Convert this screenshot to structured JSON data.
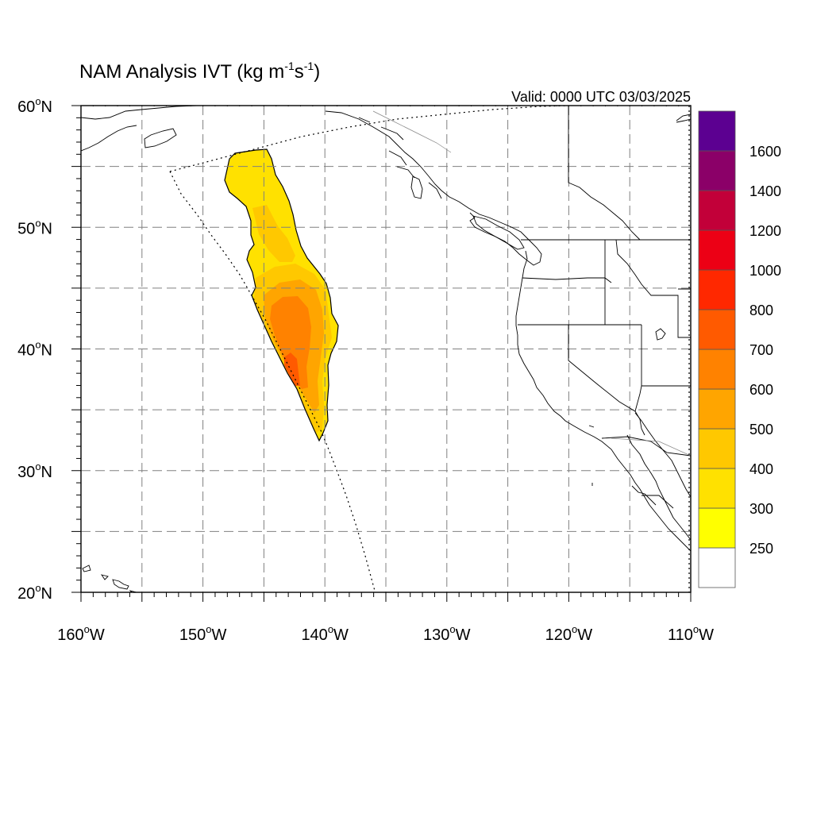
{
  "title": {
    "main": "NAM Analysis IVT (kg m",
    "exp1": "-1",
    "mid": "s",
    "exp2": "-1",
    "close": ")"
  },
  "valid_label": "Valid: 0000 UTC 03/03/2025",
  "map": {
    "projection": "lat-lon",
    "lon_range": [
      -160,
      -110
    ],
    "lat_range": [
      20,
      60
    ],
    "grid": true,
    "lon_ticks": [
      {
        "value": -160,
        "label": "160",
        "suffix": "W"
      },
      {
        "value": -150,
        "label": "150",
        "suffix": "W"
      },
      {
        "value": -140,
        "label": "140",
        "suffix": "W"
      },
      {
        "value": -130,
        "label": "130",
        "suffix": "W"
      },
      {
        "value": -120,
        "label": "120",
        "suffix": "W"
      },
      {
        "value": -110,
        "label": "110",
        "suffix": "W"
      }
    ],
    "lat_ticks": [
      {
        "value": 60,
        "label": "60",
        "suffix": "N"
      },
      {
        "value": 50,
        "label": "50",
        "suffix": "N"
      },
      {
        "value": 40,
        "label": "40",
        "suffix": "N"
      },
      {
        "value": 30,
        "label": "30",
        "suffix": "N"
      },
      {
        "value": 20,
        "label": "20",
        "suffix": "N"
      }
    ],
    "degree_symbol": "o"
  },
  "colorbar": {
    "levels": [
      "250",
      "300",
      "400",
      "500",
      "600",
      "700",
      "800",
      "1000",
      "1200",
      "1400",
      "1600"
    ],
    "colors": [
      "#ffffff",
      "#ffff00",
      "#ffe100",
      "#ffc800",
      "#ffa500",
      "#ff8200",
      "#ff5a00",
      "#ff2800",
      "#ec0015",
      "#c20039",
      "#8b0068",
      "#5c0091"
    ]
  },
  "ivt_plume": {
    "color_light": "#ffe100",
    "color_mid": "#ffc800",
    "color_high": "#ffa500",
    "color_peak": "#ff8200",
    "color_max": "#ff5a00"
  }
}
